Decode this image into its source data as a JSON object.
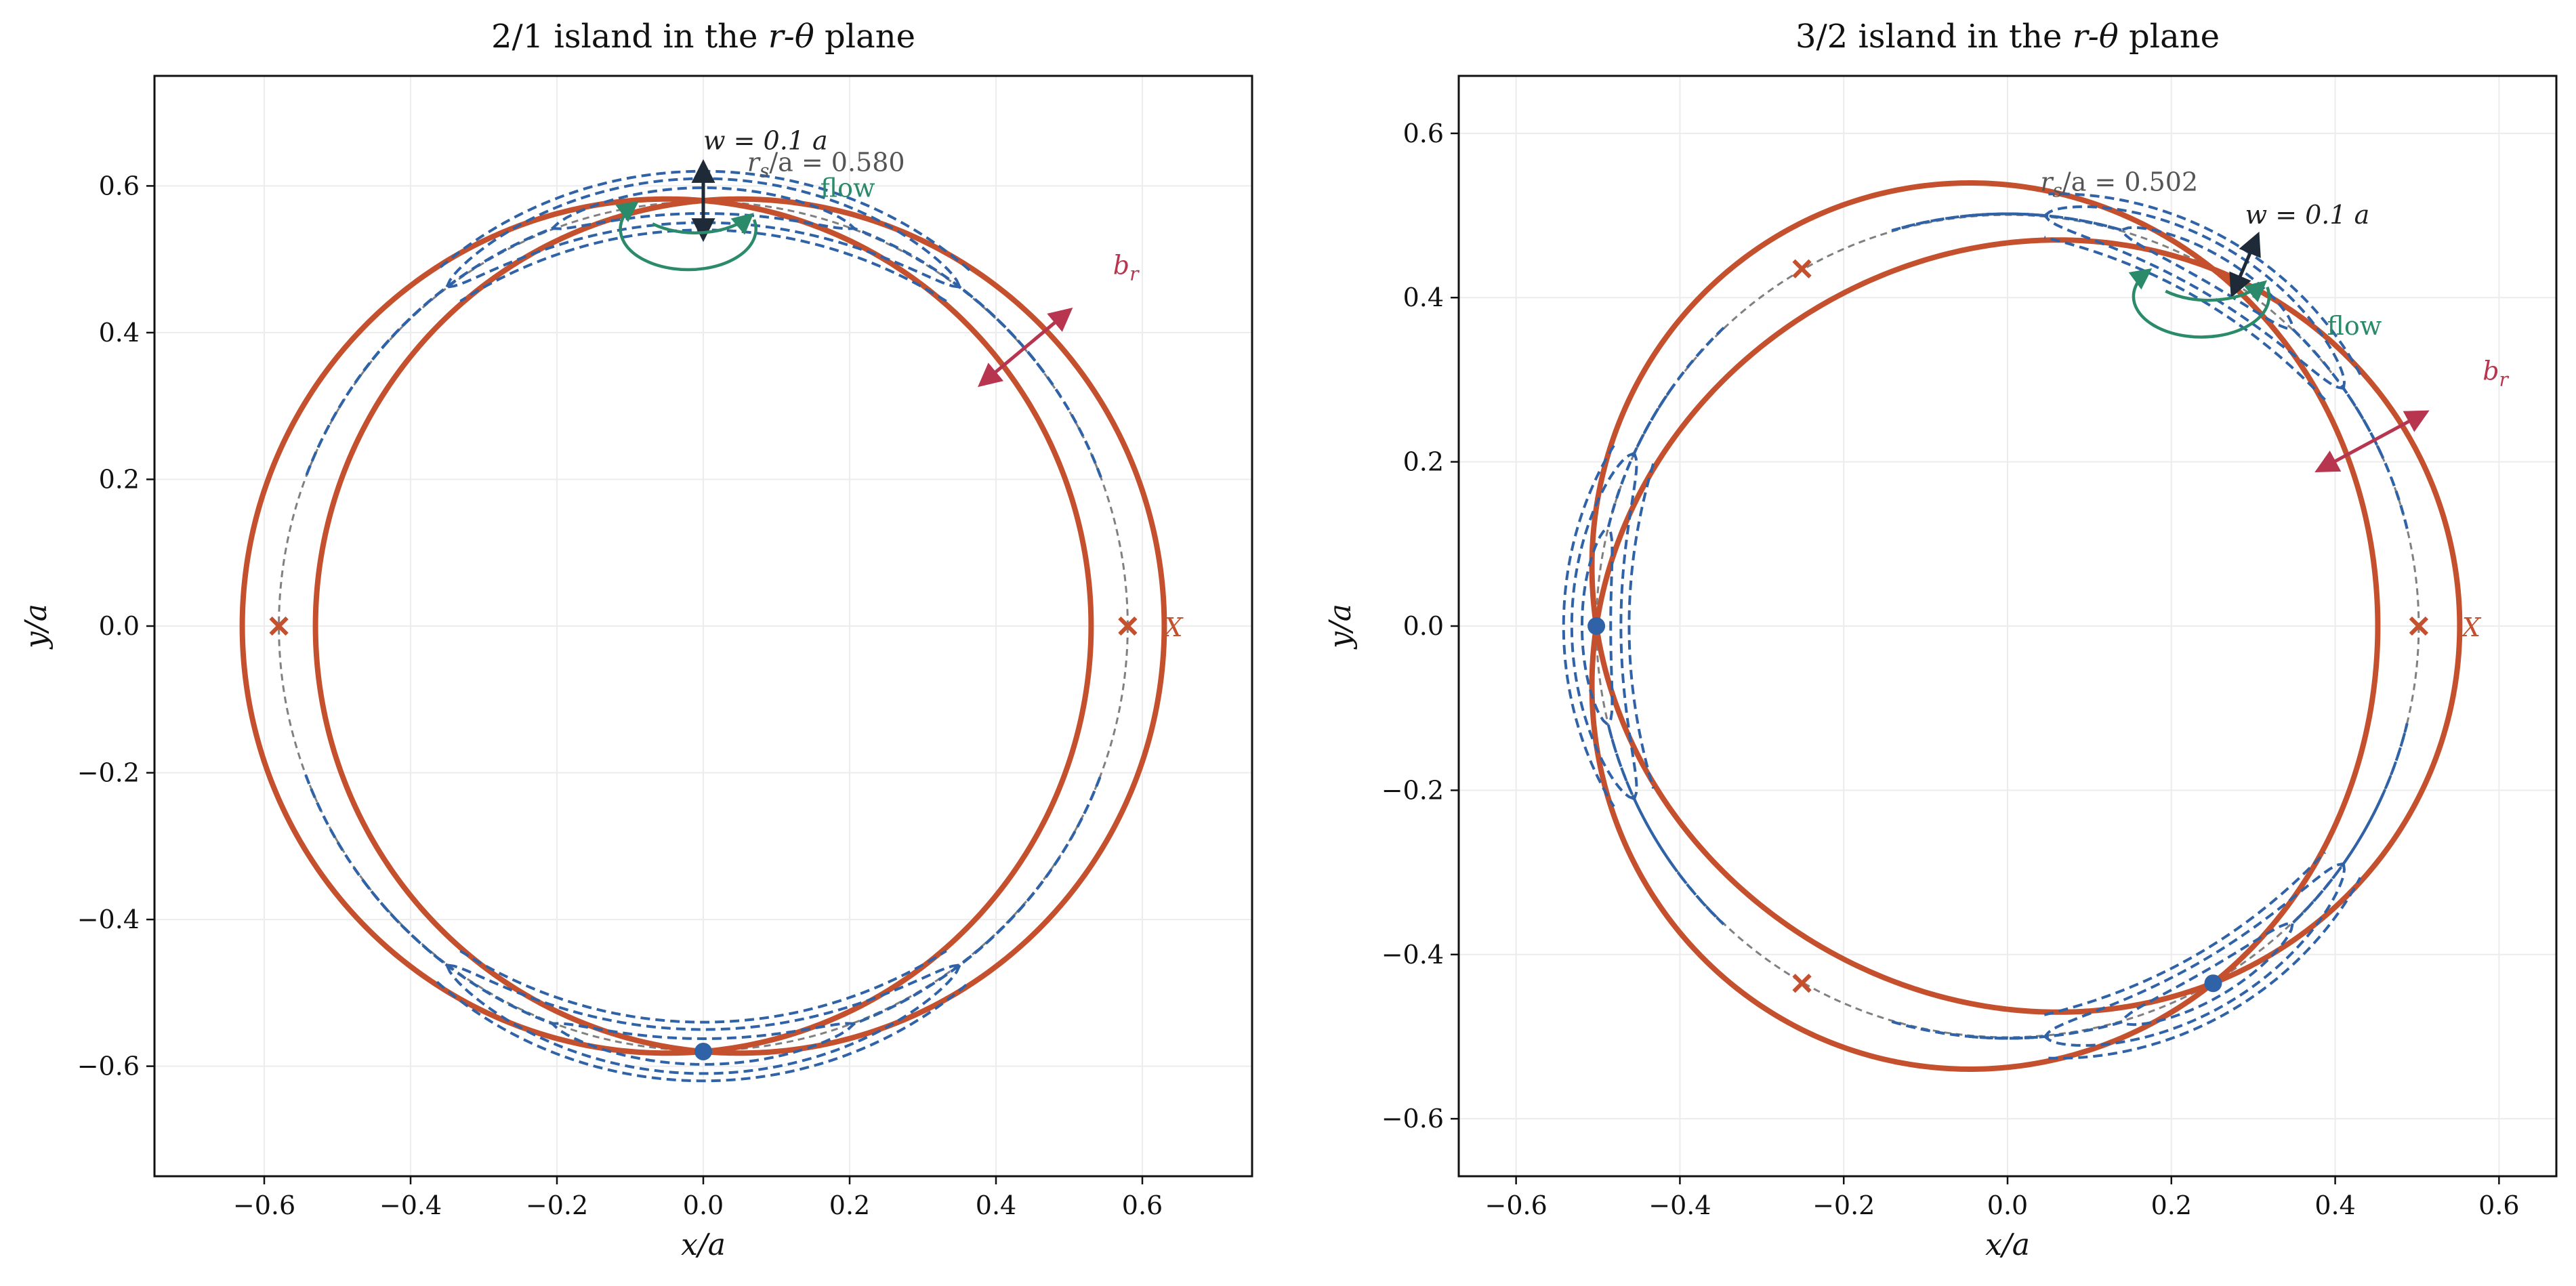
{
  "colors": {
    "separatrix": "#c4502d",
    "surfaces": "#2f62a6",
    "resonant": "#808080",
    "width_arrow": "#1f2a38",
    "flow": "#2a8a6a",
    "br": "#b8354f",
    "grid": "#ececec"
  },
  "chart_data": [
    {
      "type": "line",
      "title_pre": "2/1 island in the ",
      "title_math": "r-θ",
      "title_post": " plane",
      "xlabel": "x/a",
      "ylabel": "y/a",
      "xlim": [
        -0.75,
        0.75
      ],
      "ylim": [
        -0.75,
        0.75
      ],
      "xticks": [
        -0.6,
        -0.4,
        -0.2,
        0.0,
        0.2,
        0.4,
        0.6
      ],
      "yticks": [
        -0.6,
        -0.4,
        -0.2,
        0.0,
        0.2,
        0.4,
        0.6
      ],
      "xtick_labels": [
        "−0.6",
        "−0.4",
        "−0.2",
        "0.0",
        "0.2",
        "0.4",
        "0.6"
      ],
      "ytick_labels": [
        "−0.6",
        "−0.4",
        "−0.2",
        "0.0",
        "0.2",
        "0.4",
        "0.6"
      ],
      "grid": true,
      "m": 2,
      "r_s": 0.58,
      "w": 0.1,
      "x_points": [
        {
          "x": -0.58,
          "y": 0.0
        },
        {
          "x": 0.58,
          "y": 0.0
        }
      ],
      "o_points": [
        {
          "x": 0.0,
          "y": -0.58
        }
      ],
      "width_arrow": {
        "x": 0.0,
        "y_from": 0.53,
        "y_to": 0.63
      },
      "flow_center": {
        "x": 0.0,
        "y": 0.59
      },
      "br_arrow": {
        "x1": 0.38,
        "y1": 0.33,
        "x2": 0.5,
        "y2": 0.43
      },
      "annotations": {
        "w_label": "w = 0.1 a",
        "rs_label": "r_s/a = 0.580",
        "flow_label": "flow",
        "br_label": "b_r",
        "x_label": "X"
      },
      "ann_pos": {
        "w_label": {
          "x": 0.0,
          "y": 0.65
        },
        "rs_label": {
          "x": 0.06,
          "y": 0.62
        },
        "flow_label": {
          "x": 0.16,
          "y": 0.585
        },
        "br_label": {
          "x": 0.56,
          "y": 0.48
        },
        "x_label": {
          "x": 0.63,
          "y": 0.0
        }
      }
    },
    {
      "type": "line",
      "title_pre": "3/2 island in the ",
      "title_math": "r-θ",
      "title_post": " plane",
      "xlabel": "x/a",
      "ylabel": "y/a",
      "xlim": [
        -0.67,
        0.67
      ],
      "ylim": [
        -0.67,
        0.67
      ],
      "xticks": [
        -0.6,
        -0.4,
        -0.2,
        0.0,
        0.2,
        0.4,
        0.6
      ],
      "yticks": [
        -0.6,
        -0.4,
        -0.2,
        0.0,
        0.2,
        0.4,
        0.6
      ],
      "xtick_labels": [
        "−0.6",
        "−0.4",
        "−0.2",
        "0.0",
        "0.2",
        "0.4",
        "0.6"
      ],
      "ytick_labels": [
        "−0.6",
        "−0.4",
        "−0.2",
        "0.0",
        "0.2",
        "0.4",
        "0.6"
      ],
      "grid": true,
      "m": 3,
      "r_s": 0.502,
      "w": 0.1,
      "x_points": [
        {
          "x": 0.502,
          "y": 0.0
        },
        {
          "x": -0.251,
          "y": 0.435
        },
        {
          "x": -0.251,
          "y": -0.435
        }
      ],
      "o_points": [
        {
          "x": -0.502,
          "y": 0.0
        },
        {
          "x": 0.251,
          "y": -0.435
        }
      ],
      "width_arrow": {
        "x": 0.235,
        "y_from": 0.405,
        "y_to": 0.475
      },
      "flow_center": {
        "x": 0.255,
        "y": 0.445
      },
      "br_arrow": {
        "x1": 0.38,
        "y1": 0.19,
        "x2": 0.51,
        "y2": 0.26
      },
      "annotations": {
        "w_label": "w = 0.1 a",
        "rs_label": "r_s/a = 0.502",
        "flow_label": "flow",
        "br_label": "b_r",
        "x_label": "X"
      },
      "ann_pos": {
        "w_label": {
          "x": 0.29,
          "y": 0.49
        },
        "rs_label": {
          "x": 0.04,
          "y": 0.53
        },
        "flow_label": {
          "x": 0.39,
          "y": 0.355
        },
        "br_label": {
          "x": 0.58,
          "y": 0.3
        },
        "x_label": {
          "x": 0.555,
          "y": 0.0
        }
      }
    }
  ]
}
